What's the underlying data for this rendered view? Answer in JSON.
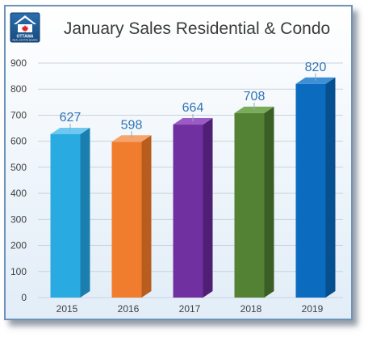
{
  "logo": {
    "name": "OTTAWA",
    "tagline": "REAL ESTATE BOARD"
  },
  "chart_data": {
    "type": "bar",
    "title": "January Sales Residential & Condo",
    "xlabel": "",
    "ylabel": "",
    "categories": [
      "2015",
      "2016",
      "2017",
      "2018",
      "2019"
    ],
    "values": [
      627,
      598,
      664,
      708,
      820
    ],
    "value_labels": [
      "627",
      "598",
      "664",
      "708",
      "820"
    ],
    "ylim": [
      0,
      900
    ],
    "yticks": [
      0,
      100,
      200,
      300,
      400,
      500,
      600,
      700,
      800,
      900
    ],
    "grid": true,
    "legend": "none",
    "bar_colors": [
      "#29abe2",
      "#f07d2e",
      "#7030a0",
      "#548235",
      "#0b6cbf"
    ],
    "bar_side_colors": [
      "#1a7fae",
      "#b85d1f",
      "#4f1f75",
      "#3b5e24",
      "#074f8e"
    ],
    "bar_top_colors": [
      "#6fc8ef",
      "#f5a56b",
      "#9a5cc4",
      "#7aab5a",
      "#3d8fd6"
    ],
    "value_label_color": "#2f74b5"
  }
}
